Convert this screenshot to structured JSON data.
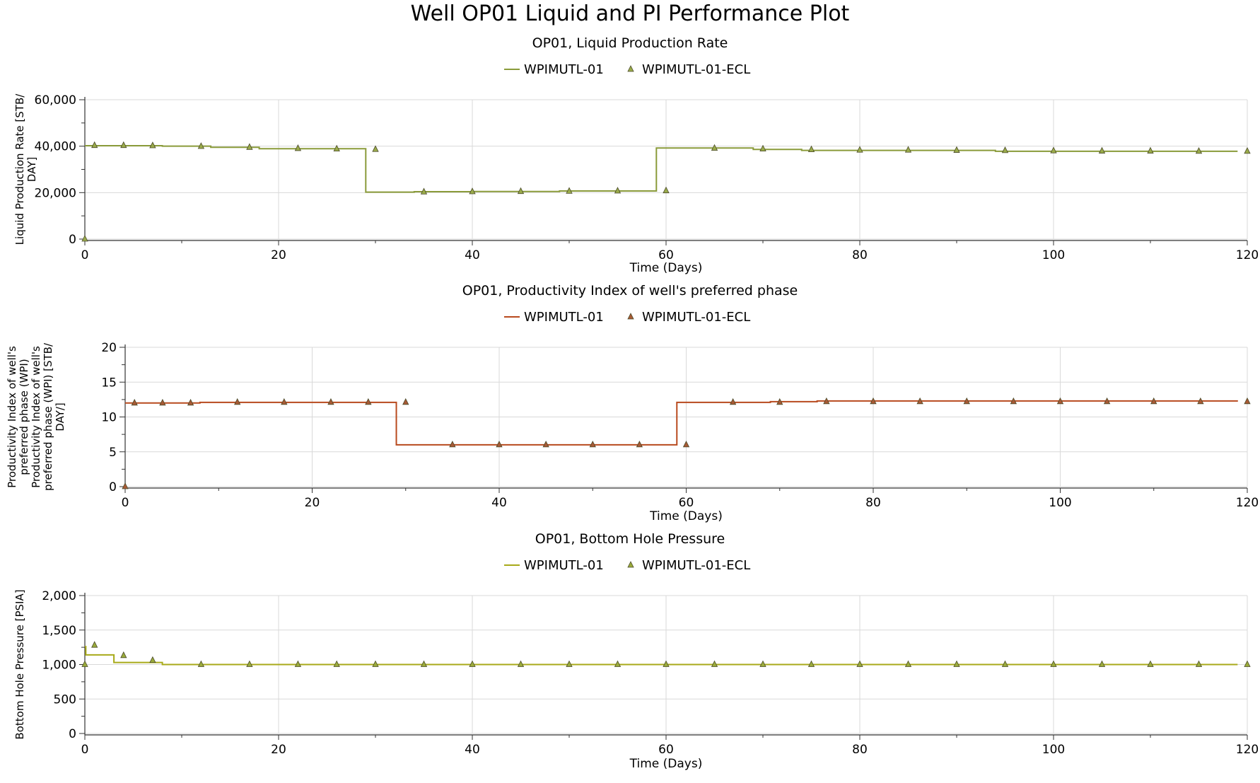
{
  "figure_title": "Well OP01 Liquid and PI Performance Plot",
  "chart_data": [
    {
      "type": "line",
      "title": "OP01, Liquid Production Rate",
      "xlabel": "Time (Days)",
      "ylabel_lines": [
        "Liquid Production Rate [STB/",
        "DAY]"
      ],
      "xlim": [
        0,
        120
      ],
      "ylim": [
        0,
        60000
      ],
      "xticks": [
        0,
        20,
        40,
        60,
        80,
        100,
        120
      ],
      "yticks": [
        0,
        20000,
        40000,
        60000
      ],
      "ytick_labels": [
        "0",
        "20,000",
        "40,000",
        "60,000"
      ],
      "grid": true,
      "legend_position": "top-center",
      "colors": {
        "line": "#8a9b3a",
        "marker": "#9aab4a"
      },
      "series": [
        {
          "name": "WPIMUTL-01",
          "kind": "step",
          "x": [
            0,
            8,
            13,
            18,
            29,
            34,
            40,
            49,
            59,
            69,
            74,
            94,
            119
          ],
          "y": [
            40200,
            40000,
            39500,
            38900,
            20200,
            20400,
            20500,
            20700,
            39200,
            38600,
            38200,
            37800,
            37800
          ]
        },
        {
          "name": "WPIMUTL-01-ECL",
          "kind": "marker",
          "x": [
            0,
            1,
            4,
            7,
            12,
            17,
            22,
            26,
            30,
            35,
            40,
            45,
            50,
            55,
            60,
            65,
            70,
            75,
            80,
            85,
            90,
            95,
            100,
            105,
            110,
            115,
            120
          ],
          "y": [
            0,
            40300,
            40300,
            40200,
            39900,
            39500,
            39000,
            38800,
            38600,
            20300,
            20400,
            20500,
            20600,
            20700,
            20800,
            39100,
            38800,
            38500,
            38300,
            38300,
            38200,
            38100,
            38000,
            37900,
            37900,
            37800,
            37800
          ]
        }
      ]
    },
    {
      "type": "line",
      "title": "OP01, Productivity Index of well's preferred phase",
      "xlabel": "Time (Days)",
      "ylabel_lines": [
        "Productivity Index of well's",
        "preferred phase (WPI)",
        "Productivity Index of well's",
        "preferred phase (WPI) [STB/",
        "DAY/]"
      ],
      "xlim": [
        0,
        120
      ],
      "ylim": [
        0,
        20
      ],
      "xticks": [
        0,
        20,
        40,
        60,
        80,
        100,
        120
      ],
      "yticks": [
        0,
        5,
        10,
        15,
        20
      ],
      "ytick_labels": [
        "0",
        "5",
        "10",
        "15",
        "20"
      ],
      "grid": true,
      "legend_position": "top-center",
      "colors": {
        "line": "#b84a1e",
        "marker": "#a85a35"
      },
      "series": [
        {
          "name": "WPIMUTL-01",
          "kind": "step",
          "x": [
            0,
            8,
            29,
            59,
            69,
            74,
            119
          ],
          "y": [
            12.0,
            12.1,
            6.0,
            12.1,
            12.2,
            12.3,
            12.3
          ]
        },
        {
          "name": "WPIMUTL-01-ECL",
          "kind": "marker",
          "x": [
            0,
            1,
            4,
            7,
            12,
            17,
            22,
            26,
            30,
            35,
            40,
            45,
            50,
            55,
            60,
            65,
            70,
            75,
            80,
            85,
            90,
            95,
            100,
            105,
            110,
            115,
            120
          ],
          "y": [
            0,
            12.0,
            12.0,
            12.0,
            12.1,
            12.1,
            12.1,
            12.1,
            12.1,
            6.0,
            6.0,
            6.0,
            6.0,
            6.0,
            6.0,
            12.1,
            12.1,
            12.2,
            12.2,
            12.2,
            12.2,
            12.2,
            12.2,
            12.2,
            12.2,
            12.2,
            12.2
          ]
        }
      ]
    },
    {
      "type": "line",
      "title": "OP01, Bottom Hole Pressure",
      "xlabel": "Time (Days)",
      "ylabel_lines": [
        "Bottom Hole Pressure [PSIA]"
      ],
      "xlim": [
        0,
        120
      ],
      "ylim": [
        0,
        2000
      ],
      "xticks": [
        0,
        20,
        40,
        60,
        80,
        100,
        120
      ],
      "yticks": [
        0,
        500,
        1000,
        1500,
        2000
      ],
      "ytick_labels": [
        "0",
        "500",
        "1,000",
        "1,500",
        "2,000"
      ],
      "grid": true,
      "legend_position": "top-center",
      "colors": {
        "line": "#a8aa1a",
        "marker": "#9aab3a"
      },
      "series": [
        {
          "name": "WPIMUTL-01",
          "kind": "step",
          "x": [
            0,
            0.1,
            3,
            8,
            119
          ],
          "y": [
            1260,
            1140,
            1030,
            1000,
            1000
          ]
        },
        {
          "name": "WPIMUTL-01-ECL",
          "kind": "marker",
          "x": [
            0,
            1,
            4,
            7,
            12,
            17,
            22,
            26,
            30,
            35,
            40,
            45,
            50,
            55,
            60,
            65,
            70,
            75,
            80,
            85,
            90,
            95,
            100,
            105,
            110,
            115,
            120
          ],
          "y": [
            1000,
            1280,
            1130,
            1060,
            1000,
            1000,
            1000,
            1000,
            1000,
            1000,
            1000,
            1000,
            1000,
            1000,
            1000,
            1000,
            1000,
            1000,
            1000,
            1000,
            1000,
            1000,
            1000,
            1000,
            1000,
            1000,
            1000
          ]
        }
      ]
    }
  ]
}
